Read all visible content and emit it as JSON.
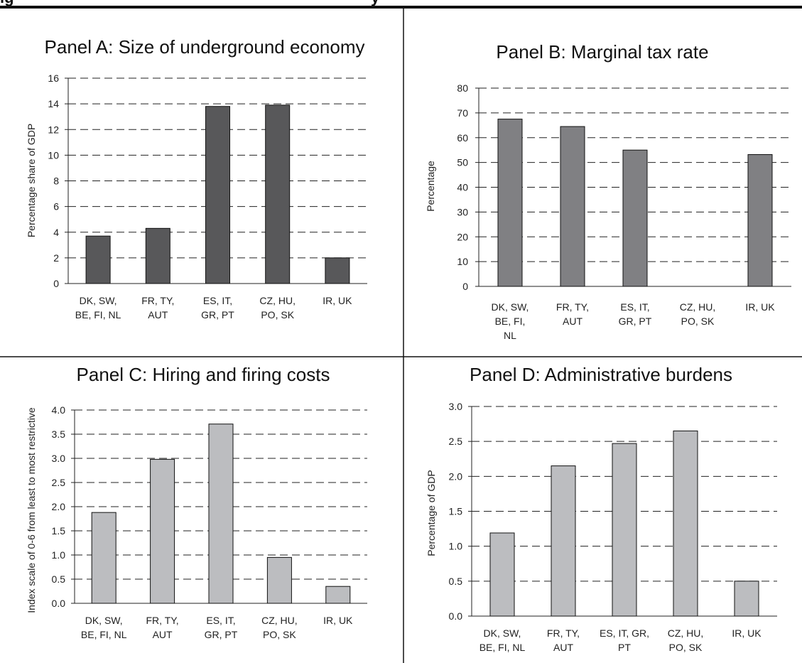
{
  "figure": {
    "heading": "ig",
    "heading_tail": "y"
  },
  "chart_data": [
    {
      "type": "bar",
      "title": "Panel A: Size of underground economy",
      "xlabel": "",
      "ylabel": "Percentage share of GDP",
      "ylim": [
        0,
        16
      ],
      "yticks": [
        "0",
        "2",
        "4",
        "6",
        "8",
        "10",
        "12",
        "14",
        "16"
      ],
      "grid": true,
      "bar_color": "#58585a",
      "categories": [
        [
          "DK, SW,",
          "BE, FI, NL"
        ],
        [
          "FR, TY,",
          "AUT"
        ],
        [
          "ES, IT,",
          "GR, PT"
        ],
        [
          "CZ, HU,",
          "PO, SK"
        ],
        [
          "IR, UK"
        ]
      ],
      "values": [
        3.7,
        4.3,
        13.8,
        13.9,
        2.0
      ]
    },
    {
      "type": "bar",
      "title": "Panel B: Marginal tax rate",
      "xlabel": "",
      "ylabel": "Percentage",
      "ylim": [
        0,
        80
      ],
      "yticks": [
        "0",
        "10",
        "20",
        "30",
        "40",
        "50",
        "60",
        "70",
        "80"
      ],
      "grid": true,
      "bar_color": "#808083",
      "categories": [
        [
          "DK, SW,",
          "BE, FI,",
          "NL"
        ],
        [
          "FR, TY,",
          "AUT"
        ],
        [
          "ES, IT,",
          "GR, PT"
        ],
        [
          "CZ, HU,",
          "PO, SK"
        ],
        [
          "IR, UK"
        ]
      ],
      "values": [
        67.5,
        64.5,
        55.0,
        null,
        53.2
      ]
    },
    {
      "type": "bar",
      "title": "Panel C: Hiring and firing costs",
      "xlabel": "",
      "ylabel": "Index scale of 0-6 from least to most restrictive",
      "ylim": [
        0,
        4
      ],
      "yticks": [
        "0.0",
        "0.5",
        "1.0",
        "1.5",
        "2.0",
        "2.5",
        "3.0",
        "3.5",
        "4.0"
      ],
      "grid": true,
      "bar_color": "#bcbdc0",
      "categories": [
        [
          "DK, SW,",
          "BE, FI, NL"
        ],
        [
          "FR, TY,",
          "AUT"
        ],
        [
          "ES, IT,",
          "GR, PT"
        ],
        [
          "CZ, HU,",
          "PO, SK"
        ],
        [
          "IR, UK"
        ]
      ],
      "values": [
        1.88,
        2.98,
        3.71,
        0.95,
        0.35
      ]
    },
    {
      "type": "bar",
      "title": "Panel D: Administrative burdens",
      "xlabel": "",
      "ylabel": "Percentage of GDP",
      "ylim": [
        0,
        3
      ],
      "yticks": [
        "0.0",
        "0.5",
        "1.0",
        "1.5",
        "2.0",
        "2.5",
        "3.0"
      ],
      "grid": true,
      "bar_color": "#bcbdc0",
      "categories": [
        [
          "DK, SW,",
          "BE, FI, NL"
        ],
        [
          "FR, TY,",
          "AUT"
        ],
        [
          "ES, IT, GR,",
          "PT"
        ],
        [
          "CZ, HU,",
          "PO, SK"
        ],
        [
          "IR, UK"
        ]
      ],
      "values": [
        1.19,
        2.15,
        2.47,
        2.65,
        0.5
      ]
    }
  ]
}
